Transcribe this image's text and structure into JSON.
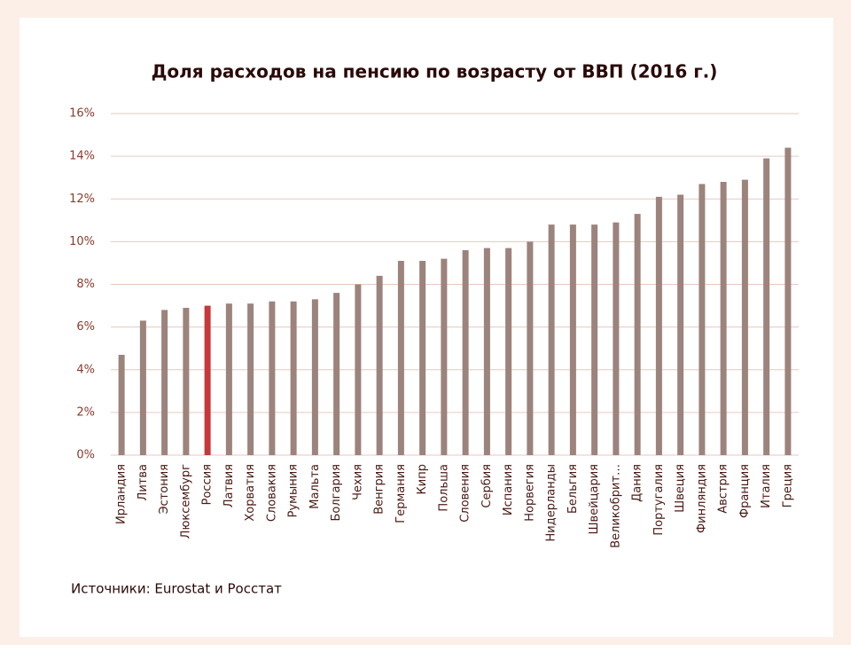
{
  "chart_data": {
    "type": "bar",
    "title": "Доля расходов на пенсию по возрасту от ВВП (2016 г.)",
    "source": "Источники: Eurostat и Росстат",
    "categories": [
      "Ирландия",
      "Литва",
      "Эстония",
      "Люксембург",
      "Россия",
      "Латвия",
      "Хорватия",
      "Словакия",
      "Румыния",
      "Мальта",
      "Болгария",
      "Чехия",
      "Венгрия",
      "Германия",
      "Кипр",
      "Польша",
      "Словения",
      "Сербия",
      "Испания",
      "Норвегия",
      "Нидерланды",
      "Бельгия",
      "Швейцария",
      "Великобрит…",
      "Дания",
      "Португалия",
      "Швеция",
      "Финляндия",
      "Австрия",
      "Франция",
      "Италия",
      "Греция"
    ],
    "values": [
      4.7,
      6.3,
      6.8,
      6.9,
      7.0,
      7.1,
      7.1,
      7.2,
      7.2,
      7.3,
      7.6,
      8.0,
      8.4,
      9.1,
      9.1,
      9.2,
      9.6,
      9.7,
      9.7,
      10.0,
      10.8,
      10.8,
      10.8,
      10.9,
      11.3,
      12.1,
      12.2,
      12.7,
      12.8,
      12.9,
      13.9,
      14.4
    ],
    "colors": [
      "#9c837c",
      "#9c837c",
      "#9c837c",
      "#9c837c",
      "#c8373a",
      "#9c837c",
      "#9c837c",
      "#9c837c",
      "#9c837c",
      "#9c837c",
      "#9c837c",
      "#9c837c",
      "#9c837c",
      "#9c837c",
      "#9c837c",
      "#9c837c",
      "#9c837c",
      "#9c837c",
      "#9c837c",
      "#9c837c",
      "#9c837c",
      "#9c837c",
      "#9c837c",
      "#9c837c",
      "#9c837c",
      "#9c837c",
      "#9c837c",
      "#9c837c",
      "#9c837c",
      "#9c837c",
      "#9c837c",
      "#9c837c"
    ],
    "ylim": [
      0,
      16
    ],
    "yticks": [
      {
        "value": 0,
        "label": "0%"
      },
      {
        "value": 2,
        "label": "2%"
      },
      {
        "value": 4,
        "label": "4%"
      },
      {
        "value": 6,
        "label": "6%"
      },
      {
        "value": 8,
        "label": "8%"
      },
      {
        "value": 10,
        "label": "10%"
      },
      {
        "value": 12,
        "label": "12%"
      },
      {
        "value": 14,
        "label": "14%"
      },
      {
        "value": 16,
        "label": "16%"
      }
    ],
    "grid": true
  }
}
